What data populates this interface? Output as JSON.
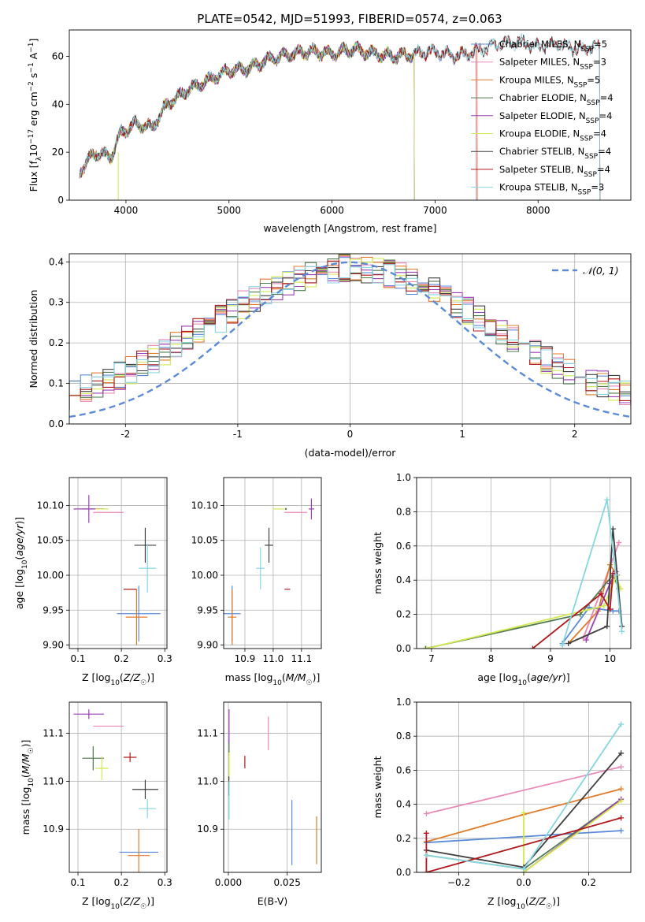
{
  "figure_title": "PLATE=0542, MJD=51993, FIBERID=0574, z=0.063",
  "colors": {
    "chabrier_miles": "#5b8bd6",
    "salpeter_miles": "#e889b8",
    "kroupa_miles": "#e07b2a",
    "chabrier_elodie": "#4f7a4f",
    "salpeter_elodie": "#9b3fb5",
    "kroupa_elodie": "#d4e84f",
    "chabrier_stelib": "#3f3f3f",
    "salpeter_stelib": "#b0191d",
    "kroupa_stelib": "#86d6e0",
    "normal_curve": "#5b8bd6",
    "grid": "#b0b0b0"
  },
  "chart_data": [
    {
      "id": "spectrum",
      "type": "line",
      "xlabel": "wavelength [Angstrom, rest frame]",
      "ylabel": "Flux [f_λ 10^-17 erg cm^-2 s^-1 A^-1]",
      "xlim": [
        3450,
        8900
      ],
      "ylim": [
        0,
        71
      ],
      "xticks": [
        4000,
        5000,
        6000,
        7000,
        8000
      ],
      "yticks": [
        0,
        20,
        40,
        60
      ],
      "grid": false,
      "legend_position": "upper-right",
      "series": [
        {
          "name": "Chabrier MILES, N_SSP=5",
          "key": "chabrier_miles",
          "x_range": [
            3550,
            7400
          ]
        },
        {
          "name": "Salpeter MILES, N_SSP=3",
          "key": "salpeter_miles",
          "x_range": [
            3550,
            7400
          ]
        },
        {
          "name": "Kroupa MILES, N_SSP=5",
          "key": "kroupa_miles",
          "x_range": [
            3550,
            7410
          ]
        },
        {
          "name": "Chabrier ELODIE, N_SSP=4",
          "key": "chabrier_elodie",
          "x_range": [
            3550,
            6800
          ]
        },
        {
          "name": "Salpeter ELODIE, N_SSP=4",
          "key": "salpeter_elodie",
          "x_range": [
            3550,
            6800
          ]
        },
        {
          "name": "Kroupa ELODIE, N_SSP=4",
          "key": "kroupa_elodie",
          "x_range": [
            3550,
            6800
          ]
        },
        {
          "name": "Chabrier STELIB, N_SSP=4",
          "key": "chabrier_stelib",
          "x_range": [
            3550,
            8600
          ]
        },
        {
          "name": "Salpeter STELIB, N_SSP=4",
          "key": "salpeter_stelib",
          "x_range": [
            3550,
            8600
          ]
        },
        {
          "name": "Kroupa STELIB, N_SSP=3",
          "key": "kroupa_stelib",
          "x_range": [
            3550,
            8600
          ]
        }
      ],
      "approx_continuum": [
        [
          3550,
          12
        ],
        [
          3700,
          20
        ],
        [
          3850,
          18
        ],
        [
          3950,
          28
        ],
        [
          4100,
          32
        ],
        [
          4250,
          30
        ],
        [
          4400,
          40
        ],
        [
          4600,
          46
        ],
        [
          4800,
          50
        ],
        [
          5000,
          54
        ],
        [
          5200,
          55
        ],
        [
          5400,
          59
        ],
        [
          5600,
          61
        ],
        [
          5800,
          62
        ],
        [
          6000,
          61
        ],
        [
          6200,
          63
        ],
        [
          6400,
          61
        ],
        [
          6600,
          60
        ],
        [
          6800,
          61
        ],
        [
          7000,
          62
        ],
        [
          7200,
          60
        ],
        [
          7400,
          62
        ],
        [
          7600,
          65
        ],
        [
          7800,
          66
        ],
        [
          8000,
          64
        ],
        [
          8200,
          65
        ],
        [
          8400,
          63
        ],
        [
          8600,
          64
        ]
      ]
    },
    {
      "id": "residuals",
      "type": "histogram",
      "xlabel": "(data-model)/error",
      "ylabel": "Normed distribution",
      "xlim": [
        -2.5,
        2.5
      ],
      "ylim": [
        0,
        0.42
      ],
      "xticks": [
        -2,
        -1,
        0,
        1,
        2
      ],
      "yticks": [
        0.0,
        0.1,
        0.2,
        0.3,
        0.4
      ],
      "grid": true,
      "legend": [
        "N(0,1)"
      ],
      "legend_position": "upper-right",
      "bin_width": 0.1,
      "normal_curve": {
        "mean": 0,
        "sigma": 1,
        "style": "dashed"
      }
    },
    {
      "id": "age_vs_Z",
      "type": "scatter",
      "xlabel": "Z [log10(Z/Z☉)]",
      "ylabel": "age [log10(age/yr)]",
      "xlim": [
        0.08,
        0.305
      ],
      "ylim": [
        9.895,
        10.14
      ],
      "xticks": [
        0.1,
        0.2,
        0.3
      ],
      "yticks": [
        9.9,
        9.95,
        10.0,
        10.05,
        10.1
      ],
      "grid": true,
      "points": [
        {
          "key": "chabrier_miles",
          "x": 0.24,
          "y": 9.945,
          "xerr": 0.05,
          "yerr": 0.04
        },
        {
          "key": "salpeter_miles",
          "x": 0.17,
          "y": 10.09,
          "xerr": 0.035,
          "yerr": 0.0
        },
        {
          "key": "kroupa_miles",
          "x": 0.235,
          "y": 9.94,
          "xerr": 0.025,
          "yerr": 0.04
        },
        {
          "key": "chabrier_elodie",
          "x": 0.135,
          "y": 10.095,
          "xerr": 0.025,
          "yerr": 0.0
        },
        {
          "key": "salpeter_elodie",
          "x": 0.125,
          "y": 10.095,
          "xerr": 0.035,
          "yerr": 0.02
        },
        {
          "key": "kroupa_elodie",
          "x": 0.155,
          "y": 10.095,
          "xerr": 0.015,
          "yerr": 0.0
        },
        {
          "key": "chabrier_stelib",
          "x": 0.255,
          "y": 10.043,
          "xerr": 0.025,
          "yerr": 0.025
        },
        {
          "key": "salpeter_stelib",
          "x": 0.22,
          "y": 9.98,
          "xerr": 0.015,
          "yerr": 0.0
        },
        {
          "key": "kroupa_stelib",
          "x": 0.26,
          "y": 10.01,
          "xerr": 0.02,
          "yerr": 0.035
        }
      ]
    },
    {
      "id": "age_vs_mass",
      "type": "scatter",
      "xlabel": "mass [log10(M/M☉)]",
      "ylabel": "",
      "xlim": [
        10.825,
        11.17
      ],
      "ylim": [
        9.895,
        10.14
      ],
      "xticks": [
        10.9,
        11.0,
        11.1
      ],
      "yticks": [
        9.9,
        9.95,
        10.0,
        10.05,
        10.1
      ],
      "grid": true,
      "points": [
        {
          "key": "chabrier_miles",
          "x": 10.855,
          "y": 9.945,
          "xerr": 0.03,
          "yerr": 0.04
        },
        {
          "key": "salpeter_miles",
          "x": 11.08,
          "y": 10.09,
          "xerr": 0.04,
          "yerr": 0.0
        },
        {
          "key": "kroupa_miles",
          "x": 10.855,
          "y": 9.94,
          "xerr": 0.015,
          "yerr": 0.04
        },
        {
          "key": "chabrier_elodie",
          "x": 11.045,
          "y": 10.095,
          "xerr": 0.0,
          "yerr": 0.0
        },
        {
          "key": "salpeter_elodie",
          "x": 11.135,
          "y": 10.095,
          "xerr": 0.01,
          "yerr": 0.015
        },
        {
          "key": "kroupa_elodie",
          "x": 11.02,
          "y": 10.095,
          "xerr": 0.02,
          "yerr": 0.0
        },
        {
          "key": "chabrier_stelib",
          "x": 10.985,
          "y": 10.043,
          "xerr": 0.015,
          "yerr": 0.025
        },
        {
          "key": "salpeter_stelib",
          "x": 11.05,
          "y": 9.98,
          "xerr": 0.01,
          "yerr": 0.0
        },
        {
          "key": "kroupa_stelib",
          "x": 10.955,
          "y": 10.01,
          "xerr": 0.015,
          "yerr": 0.03
        }
      ]
    },
    {
      "id": "weight_vs_age",
      "type": "line",
      "xlabel": "age [log10(age/yr)]",
      "ylabel": "mass weight",
      "xlim": [
        6.75,
        10.35
      ],
      "ylim": [
        0,
        1
      ],
      "xticks": [
        7,
        8,
        9,
        10
      ],
      "yticks": [
        0.0,
        0.2,
        0.4,
        0.6,
        0.8,
        1.0
      ],
      "grid": true,
      "series": [
        {
          "key": "chabrier_miles",
          "x": [
            9.2,
            9.65,
            10.05,
            10.15
          ],
          "y": [
            0.03,
            0.24,
            0.22,
            0.22
          ]
        },
        {
          "key": "salpeter_miles",
          "x": [
            9.55,
            10.15
          ],
          "y": [
            0.06,
            0.62
          ]
        },
        {
          "key": "kroupa_miles",
          "x": [
            9.3,
            9.8,
            10.0,
            10.12
          ],
          "y": [
            0.03,
            0.22,
            0.49,
            0.43
          ]
        },
        {
          "key": "chabrier_elodie",
          "x": [
            6.9,
            9.5,
            10.05,
            10.15
          ],
          "y": [
            0.0,
            0.2,
            0.43,
            0.35
          ]
        },
        {
          "key": "salpeter_elodie",
          "x": [
            9.6,
            10.0,
            10.1
          ],
          "y": [
            0.05,
            0.38,
            0.45
          ]
        },
        {
          "key": "kroupa_elodie",
          "x": [
            6.92,
            9.9,
            10.1,
            10.18
          ],
          "y": [
            0.0,
            0.25,
            0.42,
            0.35
          ]
        },
        {
          "key": "chabrier_stelib",
          "x": [
            9.3,
            9.95,
            10.05,
            10.2
          ],
          "y": [
            0.03,
            0.13,
            0.7,
            0.13
          ]
        },
        {
          "key": "salpeter_stelib",
          "x": [
            8.7,
            9.85,
            10.0,
            10.05
          ],
          "y": [
            0.0,
            0.32,
            0.23,
            0.44
          ]
        },
        {
          "key": "kroupa_stelib",
          "x": [
            9.2,
            9.95,
            10.1,
            10.2
          ],
          "y": [
            0.02,
            0.87,
            0.43,
            0.1
          ]
        }
      ]
    },
    {
      "id": "mass_vs_Z",
      "type": "scatter",
      "xlabel": "Z [log10(Z/Z☉)]",
      "ylabel": "mass [log10(M/M☉)]",
      "xlim": [
        0.08,
        0.305
      ],
      "ylim": [
        10.81,
        11.165
      ],
      "xticks": [
        0.1,
        0.2,
        0.3
      ],
      "yticks": [
        10.9,
        11.0,
        11.1
      ],
      "grid": true,
      "points": [
        {
          "key": "chabrier_miles",
          "x": 0.24,
          "y": 10.852,
          "xerr": 0.045,
          "yerr": 0.0
        },
        {
          "key": "salpeter_miles",
          "x": 0.17,
          "y": 11.115,
          "xerr": 0.035,
          "yerr": 0.0
        },
        {
          "key": "kroupa_miles",
          "x": 0.24,
          "y": 10.845,
          "xerr": 0.025,
          "yerr": 0.055
        },
        {
          "key": "chabrier_elodie",
          "x": 0.135,
          "y": 11.048,
          "xerr": 0.025,
          "yerr": 0.025
        },
        {
          "key": "salpeter_elodie",
          "x": 0.125,
          "y": 11.14,
          "xerr": 0.035,
          "yerr": 0.01
        },
        {
          "key": "kroupa_elodie",
          "x": 0.155,
          "y": 11.027,
          "xerr": 0.015,
          "yerr": 0.025
        },
        {
          "key": "chabrier_stelib",
          "x": 0.255,
          "y": 10.983,
          "xerr": 0.03,
          "yerr": 0.02
        },
        {
          "key": "salpeter_stelib",
          "x": 0.22,
          "y": 11.05,
          "xerr": 0.015,
          "yerr": 0.01
        },
        {
          "key": "kroupa_stelib",
          "x": 0.26,
          "y": 10.943,
          "xerr": 0.02,
          "yerr": 0.02
        }
      ]
    },
    {
      "id": "mass_vs_ebv",
      "type": "scatter",
      "xlabel": "E(B-V)",
      "ylabel": "",
      "xlim": [
        -0.002,
        0.0395
      ],
      "ylim": [
        10.81,
        11.165
      ],
      "xticks": [
        0.0,
        0.025
      ],
      "xtick_labels": [
        "0.000",
        "0.025"
      ],
      "yticks": [
        10.9,
        11.0,
        11.1
      ],
      "grid": true,
      "points": [
        {
          "key": "chabrier_miles",
          "x": 0.027,
          "y": 10.893,
          "xerr": 0.0,
          "yerr": 0.068
        },
        {
          "key": "salpeter_miles",
          "x": 0.017,
          "y": 11.1,
          "xerr": 0.0,
          "yerr": 0.035
        },
        {
          "key": "kroupa_miles",
          "x": 0.0375,
          "y": 10.877,
          "xerr": 0.0,
          "yerr": 0.05
        },
        {
          "key": "chabrier_elodie",
          "x": 0.0003,
          "y": 11.04,
          "xerr": 0.0,
          "yerr": 0.045
        },
        {
          "key": "salpeter_elodie",
          "x": 0.0003,
          "y": 11.115,
          "xerr": 0.0,
          "yerr": 0.035
        },
        {
          "key": "kroupa_elodie",
          "x": 0.0003,
          "y": 11.03,
          "xerr": 0.0,
          "yerr": 0.03
        },
        {
          "key": "chabrier_stelib",
          "x": 0.0002,
          "y": 10.99,
          "xerr": 0.0,
          "yerr": 0.02
        },
        {
          "key": "salpeter_stelib",
          "x": 0.007,
          "y": 11.04,
          "xerr": 0.0,
          "yerr": 0.013
        },
        {
          "key": "kroupa_stelib",
          "x": 0.0003,
          "y": 10.96,
          "xerr": 0.0,
          "yerr": 0.04
        }
      ]
    },
    {
      "id": "weight_vs_Z",
      "type": "line",
      "xlabel": "Z [log10(Z/Z☉)]",
      "ylabel": "mass weight",
      "xlim": [
        -0.33,
        0.33
      ],
      "ylim": [
        0,
        1
      ],
      "xticks": [
        -0.2,
        0.0,
        0.2
      ],
      "xtick_labels": [
        "−0.2",
        "0.0",
        "0.2"
      ],
      "yticks": [
        0.0,
        0.2,
        0.4,
        0.6,
        0.8,
        1.0
      ],
      "grid": true,
      "series": [
        {
          "key": "chabrier_miles",
          "x": [
            -0.3,
            0.0,
            0.3
          ],
          "y": [
            0.175,
            0.21,
            0.245
          ]
        },
        {
          "key": "salpeter_miles",
          "x": [
            -0.3,
            0.3
          ],
          "y": [
            0.345,
            0.62
          ]
        },
        {
          "key": "kroupa_miles",
          "x": [
            -0.3,
            0.0,
            0.3
          ],
          "y": [
            0.18,
            0.34,
            0.49
          ]
        },
        {
          "key": "chabrier_elodie",
          "x": [
            -0.3,
            0.0,
            0.3
          ],
          "y": [
            0.1,
            0.02,
            0.43
          ]
        },
        {
          "key": "salpeter_elodie",
          "x": [
            0.0,
            0.3
          ],
          "y": [
            0.0,
            0.43
          ]
        },
        {
          "key": "kroupa_elodie",
          "x": [
            0.0,
            0.0,
            0.3
          ],
          "y": [
            0.35,
            0.0,
            0.42
          ]
        },
        {
          "key": "chabrier_stelib",
          "x": [
            -0.3,
            0.0,
            0.3
          ],
          "y": [
            0.13,
            0.03,
            0.7
          ]
        },
        {
          "key": "salpeter_stelib",
          "x": [
            -0.3,
            -0.3,
            0.3
          ],
          "y": [
            0.23,
            0.0,
            0.32
          ]
        },
        {
          "key": "kroupa_stelib",
          "x": [
            -0.3,
            0.0,
            0.3
          ],
          "y": [
            0.1,
            0.02,
            0.87
          ]
        }
      ]
    }
  ]
}
